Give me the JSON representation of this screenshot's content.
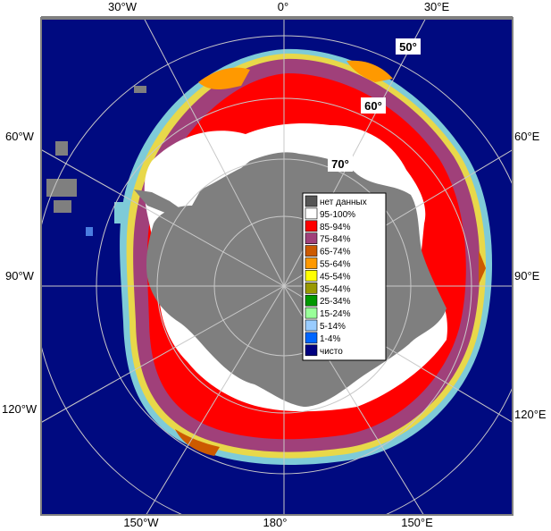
{
  "map": {
    "lon_labels": {
      "top_w30": "30°W",
      "top_0": "0°",
      "top_e30": "30°E",
      "left_w60": "60°W",
      "left_w90": "90°W",
      "left_w120": "120°W",
      "right_e60": "60°E",
      "right_e90": "90°E",
      "right_e120": "120°E",
      "bottom_w150": "150°W",
      "bottom_180": "180°",
      "bottom_e150": "150°E"
    },
    "lat_labels": {
      "lat50": "50°",
      "lat60": "60°",
      "lat70": "70°"
    }
  },
  "legend": {
    "items": [
      {
        "label": "нет данных",
        "color": "#555555"
      },
      {
        "label": "95-100%",
        "color": "#ffffff"
      },
      {
        "label": "85-94%",
        "color": "#ff0000"
      },
      {
        "label": "75-84%",
        "color": "#a0407a"
      },
      {
        "label": "65-74%",
        "color": "#cc5a00"
      },
      {
        "label": "55-64%",
        "color": "#ff9900"
      },
      {
        "label": "45-54%",
        "color": "#ffff00"
      },
      {
        "label": "35-44%",
        "color": "#999900"
      },
      {
        "label": "25-34%",
        "color": "#009900"
      },
      {
        "label": "15-24%",
        "color": "#99ff99"
      },
      {
        "label": "5-14%",
        "color": "#99ccff"
      },
      {
        "label": "1-4%",
        "color": "#0066ff"
      },
      {
        "label": "чисто",
        "color": "#000080"
      }
    ]
  },
  "colors": {
    "water": "#000a80",
    "land": "#7f7f7f",
    "nodata": "#555555",
    "frame": "#808080"
  }
}
